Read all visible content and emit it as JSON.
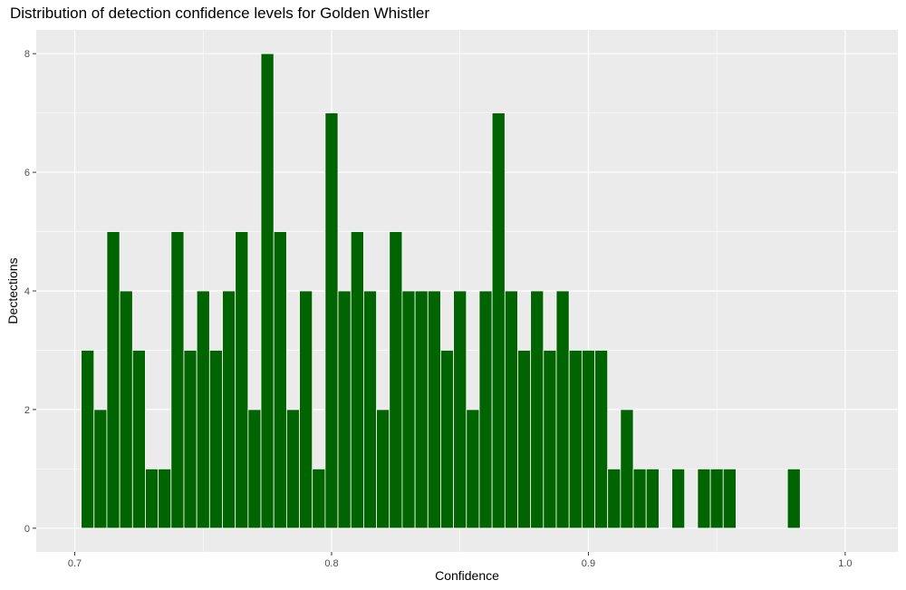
{
  "chart_data": {
    "type": "bar",
    "title": "Distribution of detection confidence levels for Golden Whistler",
    "xlabel": "Confidence",
    "ylabel": "Dectections",
    "xlim": [
      0.685,
      1.0205
    ],
    "ylim": [
      -0.4,
      8.4
    ],
    "x_ticks": [
      0.7,
      0.8,
      0.9,
      1.0
    ],
    "x_tick_labels": [
      "0.7",
      "0.8",
      "0.9",
      "1.0"
    ],
    "y_ticks": [
      0,
      2,
      4,
      6,
      8
    ],
    "y_tick_labels": [
      "0",
      "2",
      "4",
      "6",
      "8"
    ],
    "bin_width": 0.005,
    "grid": true,
    "legend": false,
    "x": [
      0.705,
      0.71,
      0.715,
      0.72,
      0.725,
      0.73,
      0.735,
      0.74,
      0.745,
      0.75,
      0.755,
      0.76,
      0.765,
      0.77,
      0.775,
      0.78,
      0.785,
      0.79,
      0.795,
      0.8,
      0.805,
      0.81,
      0.815,
      0.82,
      0.825,
      0.83,
      0.835,
      0.84,
      0.845,
      0.85,
      0.855,
      0.86,
      0.865,
      0.87,
      0.875,
      0.88,
      0.885,
      0.89,
      0.895,
      0.9,
      0.905,
      0.91,
      0.915,
      0.92,
      0.925,
      0.93,
      0.935,
      0.94,
      0.945,
      0.95,
      0.955,
      0.96,
      0.965,
      0.97,
      0.975,
      0.98
    ],
    "values": [
      3,
      2,
      5,
      4,
      3,
      1,
      1,
      5,
      3,
      4,
      3,
      4,
      5,
      2,
      8,
      5,
      2,
      4,
      1,
      7,
      4,
      5,
      4,
      2,
      5,
      4,
      4,
      4,
      3,
      4,
      2,
      4,
      7,
      4,
      3,
      4,
      3,
      4,
      3,
      3,
      3,
      1,
      2,
      1,
      1,
      0,
      1,
      0,
      1,
      1,
      1,
      0,
      0,
      0,
      0,
      1
    ],
    "colors": {
      "bar_fill": "#006400",
      "bar_stroke": "#ffffff",
      "panel": "#ebebeb",
      "grid": "#ffffff"
    }
  }
}
